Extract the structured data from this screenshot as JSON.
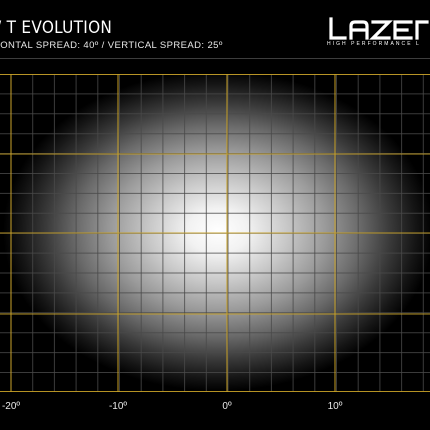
{
  "header": {
    "title": "/ T EVOLUTION",
    "spread_text": "ZONTAL SPREAD: 40º  /  VERTICAL SPREAD:  25º"
  },
  "logo": {
    "wordmark": "LAZER",
    "tagline": "HIGH PERFORMANCE L"
  },
  "beam_plot": {
    "x_ticks": [
      "-20º",
      "-10º",
      "0º",
      "10º"
    ],
    "grid_color": "#c9a227",
    "minor_grid_color": "#4a4a4a"
  }
}
